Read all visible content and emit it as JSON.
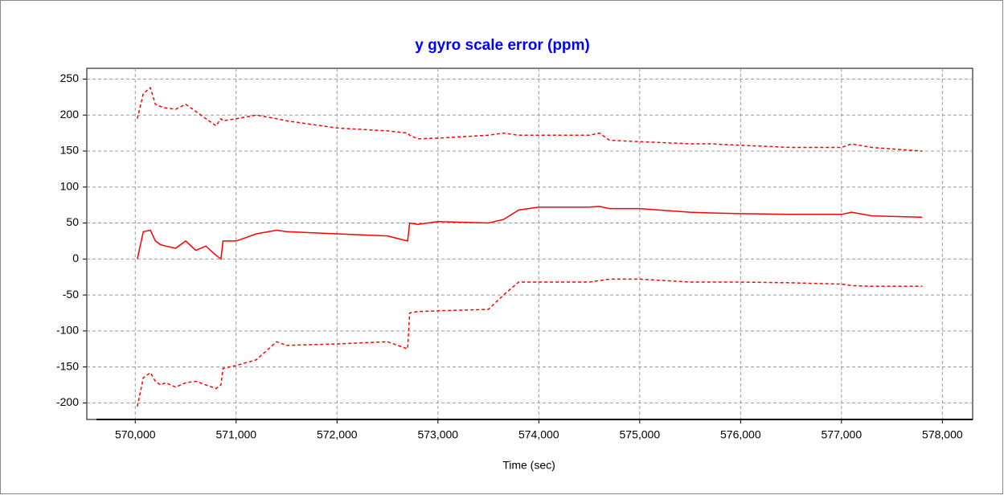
{
  "chart_data": {
    "type": "line",
    "title": "y gyro scale error (ppm)",
    "x_label": "Time (sec)",
    "x": [
      570020,
      570080,
      570150,
      570200,
      570250,
      570300,
      570400,
      570500,
      570600,
      570700,
      570800,
      570850,
      570870,
      571000,
      571200,
      571400,
      571500,
      572000,
      572500,
      572700,
      572720,
      572800,
      573000,
      573500,
      573650,
      573800,
      574000,
      574500,
      574600,
      574700,
      575000,
      575500,
      575700,
      576000,
      576500,
      577000,
      577100,
      577300,
      577800
    ],
    "series": [
      {
        "color": "#ff0000",
        "line_style": "dashed",
        "values": [
          195,
          230,
          238,
          215,
          212,
          210,
          208,
          215,
          205,
          195,
          185,
          195,
          192,
          195,
          200,
          195,
          192,
          182,
          178,
          175,
          172,
          167,
          168,
          172,
          175,
          172,
          172,
          172,
          175,
          165,
          163,
          160,
          160,
          158,
          155,
          155,
          160,
          155,
          150
        ]
      },
      {
        "color": "#ff0000",
        "line_style": "solid",
        "values": [
          0,
          38,
          40,
          25,
          20,
          18,
          15,
          25,
          12,
          18,
          5,
          0,
          25,
          25,
          35,
          40,
          38,
          35,
          32,
          25,
          50,
          48,
          52,
          50,
          55,
          68,
          72,
          72,
          73,
          70,
          70,
          65,
          64,
          63,
          62,
          62,
          65,
          60,
          58
        ]
      },
      {
        "color": "#ff0000",
        "line_style": "dashed",
        "values": [
          -205,
          -165,
          -158,
          -170,
          -175,
          -172,
          -178,
          -172,
          -170,
          -175,
          -180,
          -175,
          -152,
          -148,
          -140,
          -115,
          -120,
          -118,
          -115,
          -125,
          -75,
          -73,
          -72,
          -70,
          -50,
          -32,
          -32,
          -32,
          -30,
          -28,
          -28,
          -32,
          -32,
          -32,
          -33,
          -35,
          -37,
          -38,
          -38
        ]
      }
    ],
    "xlim": [
      569520,
      578300
    ],
    "xticks": [
      {
        "value": 570000,
        "label": "570,000"
      },
      {
        "value": 571000,
        "label": "571,000"
      },
      {
        "value": 572000,
        "label": "572,000"
      },
      {
        "value": 573000,
        "label": "573,000"
      },
      {
        "value": 574000,
        "label": "574,000"
      },
      {
        "value": 575000,
        "label": "575,000"
      },
      {
        "value": 576000,
        "label": "576,000"
      },
      {
        "value": 577000,
        "label": "577,000"
      },
      {
        "value": 578000,
        "label": "578,000"
      }
    ],
    "ylim": [
      -223,
      265
    ],
    "yticks": [
      -200,
      -150,
      -100,
      -50,
      0,
      50,
      100,
      150,
      200,
      250
    ],
    "grid": true,
    "title_color": "#0000ff"
  }
}
